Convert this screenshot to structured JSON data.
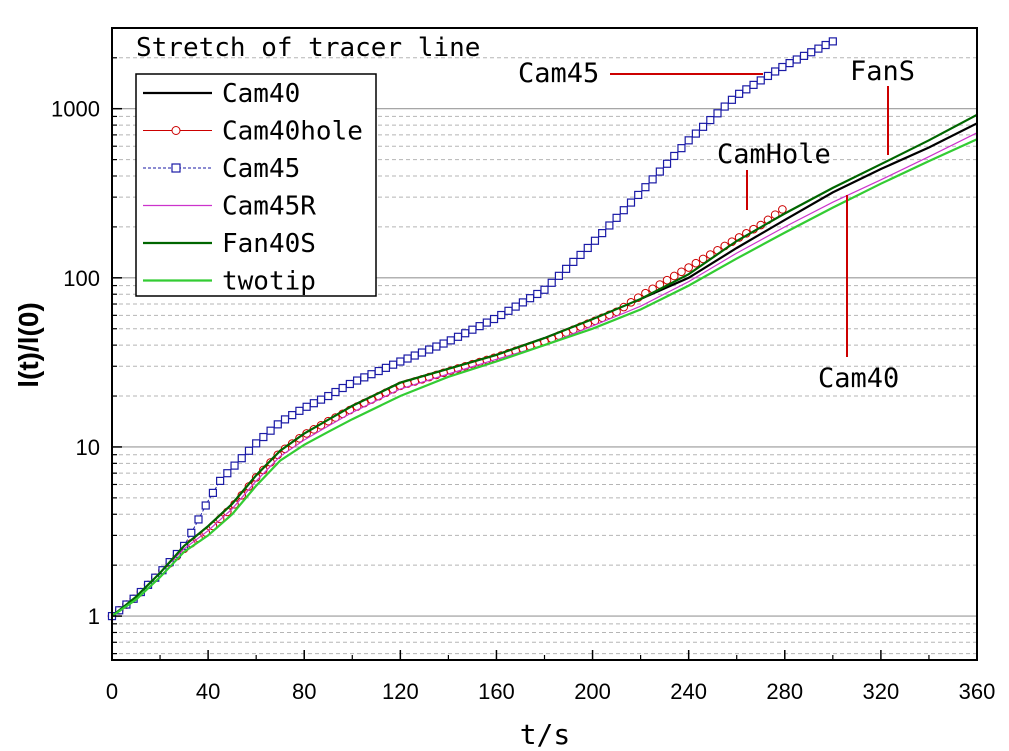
{
  "chart_data": {
    "type": "line",
    "title": "Stretch of tracer line",
    "xlabel": "t/s",
    "ylabel": "l(t)/l(0)",
    "xlim": [
      0,
      360
    ],
    "ylim": [
      0.55,
      3000
    ],
    "yscale": "log",
    "grid": "horizontal",
    "legend": "top-left",
    "x_ticks": [
      "0",
      "40",
      "80",
      "120",
      "160",
      "200",
      "240",
      "280",
      "320",
      "360"
    ],
    "y_ticks": [
      "1",
      "10",
      "100",
      "1000"
    ],
    "series": [
      {
        "name": "Cam40",
        "color": "#000000",
        "style": "line",
        "x": [
          0,
          10,
          20,
          30,
          40,
          50,
          60,
          70,
          80,
          90,
          100,
          120,
          140,
          160,
          180,
          200,
          210,
          220,
          240,
          260,
          280,
          300,
          320,
          340,
          360
        ],
        "y": [
          1,
          1.3,
          1.8,
          2.6,
          3.4,
          4.6,
          6.8,
          9.5,
          12,
          14.5,
          17.5,
          24,
          29,
          35,
          44,
          57,
          64,
          75,
          100,
          150,
          220,
          320,
          440,
          590,
          820
        ]
      },
      {
        "name": "Cam40hole",
        "color": "#cc0000",
        "style": "circle",
        "x": [
          0,
          10,
          20,
          30,
          40,
          50,
          60,
          70,
          80,
          90,
          100,
          120,
          140,
          160,
          180,
          200,
          210,
          220,
          230,
          240,
          250,
          260,
          270,
          280
        ],
        "y": [
          1,
          1.3,
          1.8,
          2.5,
          3.2,
          4.4,
          6.6,
          9.3,
          11.8,
          14.2,
          16.8,
          23,
          28,
          34,
          42,
          55,
          63,
          78,
          95,
          115,
          140,
          170,
          205,
          260
        ]
      },
      {
        "name": "Cam45",
        "color": "#1a1aa6",
        "style": "square",
        "x": [
          0,
          10,
          20,
          30,
          35,
          40,
          45,
          50,
          60,
          70,
          80,
          90,
          100,
          120,
          140,
          160,
          180,
          200,
          220,
          240,
          260,
          280,
          300
        ],
        "y": [
          1,
          1.3,
          1.8,
          2.6,
          3.5,
          4.8,
          6.3,
          7.5,
          10.5,
          14,
          17,
          20,
          24,
          32,
          42,
          58,
          85,
          160,
          320,
          650,
          1200,
          1800,
          2500
        ]
      },
      {
        "name": "Cam45R",
        "color": "#cc33cc",
        "style": "line",
        "x": [
          0,
          10,
          20,
          30,
          40,
          50,
          60,
          70,
          80,
          90,
          100,
          120,
          140,
          160,
          180,
          200,
          220,
          240,
          260,
          280,
          300,
          320,
          340,
          360
        ],
        "y": [
          1,
          1.3,
          1.8,
          2.5,
          3.2,
          4.3,
          6.3,
          8.8,
          11,
          13.3,
          16,
          22,
          27,
          33,
          40,
          52,
          68,
          95,
          140,
          200,
          280,
          380,
          520,
          720
        ]
      },
      {
        "name": "Fan40S",
        "color": "#006600",
        "style": "line",
        "x": [
          0,
          10,
          20,
          30,
          40,
          50,
          60,
          70,
          80,
          90,
          100,
          120,
          140,
          160,
          180,
          200,
          220,
          240,
          260,
          280,
          300,
          320,
          340,
          360
        ],
        "y": [
          1,
          1.3,
          1.8,
          2.6,
          3.4,
          4.6,
          6.8,
          9.5,
          12,
          14.5,
          17.5,
          24,
          29,
          35,
          44,
          57,
          75,
          105,
          165,
          240,
          340,
          470,
          650,
          920
        ]
      },
      {
        "name": "twotip",
        "color": "#33cc33",
        "style": "line",
        "x": [
          0,
          10,
          20,
          30,
          40,
          50,
          60,
          70,
          80,
          90,
          100,
          120,
          140,
          160,
          180,
          200,
          220,
          240,
          260,
          280,
          300,
          320,
          340,
          360
        ],
        "y": [
          1,
          1.25,
          1.7,
          2.4,
          3.0,
          4.0,
          5.9,
          8.3,
          10.3,
          12.3,
          14.6,
          20,
          26,
          32,
          40,
          50,
          65,
          90,
          130,
          185,
          260,
          360,
          490,
          660
        ]
      }
    ],
    "annotations": [
      {
        "text": "Cam45",
        "arrow_to": {
          "x": 270,
          "y": 1850
        }
      },
      {
        "text": "FanS",
        "arrow_to": {
          "x": 325,
          "y": 500
        }
      },
      {
        "text": "CamHole",
        "arrow_to": {
          "x": 266,
          "y": 200
        }
      },
      {
        "text": "Cam40",
        "arrow_to": {
          "x": 307,
          "y": 335
        }
      }
    ]
  }
}
